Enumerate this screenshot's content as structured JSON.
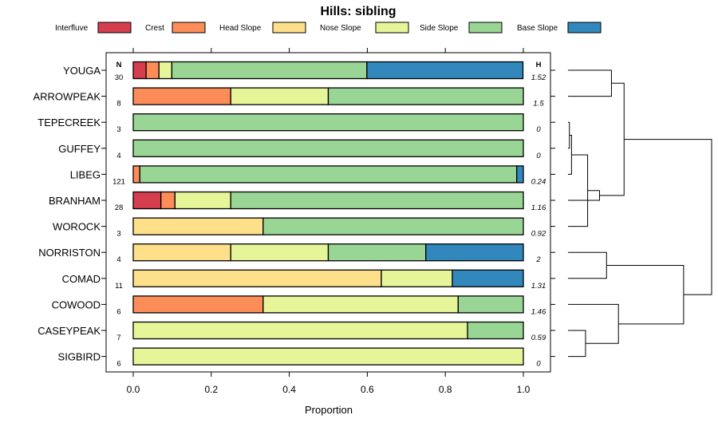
{
  "chart_data": {
    "type": "bar",
    "orientation": "horizontal",
    "stacked": true,
    "title": "Hills: sibling",
    "xlabel": "Proportion",
    "xlim": [
      0,
      1
    ],
    "xticks": [
      "0.0",
      "0.2",
      "0.4",
      "0.6",
      "0.8",
      "1.0"
    ],
    "n_header": "N",
    "h_header": "H",
    "legend": [
      {
        "name": "Interfluve",
        "color": "#d53e4f"
      },
      {
        "name": "Crest",
        "color": "#fc8d59"
      },
      {
        "name": "Head Slope",
        "color": "#fee08b"
      },
      {
        "name": "Nose Slope",
        "color": "#e6f598"
      },
      {
        "name": "Side Slope",
        "color": "#99d594"
      },
      {
        "name": "Base Slope",
        "color": "#3288bd"
      }
    ],
    "categories": [
      "YOUGA",
      "ARROWPEAK",
      "TEPECREEK",
      "GUFFEY",
      "LIBEG",
      "BRANHAM",
      "WOROCK",
      "NORRISTON",
      "COMAD",
      "COWOOD",
      "CASEYPEAK",
      "SIGBIRD"
    ],
    "n": [
      "30",
      "8",
      "3",
      "4",
      "121",
      "28",
      "3",
      "4",
      "11",
      "6",
      "7",
      "6"
    ],
    "h": [
      "1.52",
      "1.5",
      "0",
      "0",
      "0.24",
      "1.16",
      "0.92",
      "2",
      "1.31",
      "1.46",
      "0.59",
      "0"
    ],
    "series": [
      {
        "name": "Interfluve",
        "values": [
          0.033,
          0,
          0,
          0,
          0,
          0.071,
          0,
          0,
          0,
          0,
          0,
          0
        ]
      },
      {
        "name": "Crest",
        "values": [
          0.033,
          0.25,
          0,
          0,
          0.017,
          0.036,
          0,
          0,
          0,
          0.333,
          0,
          0
        ]
      },
      {
        "name": "Head Slope",
        "values": [
          0,
          0,
          0,
          0,
          0,
          0,
          0.333,
          0.25,
          0.636,
          0,
          0,
          0
        ]
      },
      {
        "name": "Nose Slope",
        "values": [
          0.033,
          0.25,
          0,
          0,
          0,
          0.143,
          0,
          0.25,
          0.182,
          0.5,
          0.857,
          1
        ]
      },
      {
        "name": "Side Slope",
        "values": [
          0.5,
          0.5,
          1,
          1,
          0.966,
          0.75,
          0.667,
          0.25,
          0,
          0.167,
          0.143,
          0
        ]
      },
      {
        "name": "Base Slope",
        "values": [
          0.4,
          0,
          0,
          0,
          0.017,
          0,
          0,
          0.25,
          0.182,
          0,
          0,
          0
        ]
      }
    ],
    "dendrogram": {
      "nodes": [
        {
          "left": "GUFFEY",
          "right": "TEPECREEK",
          "height": 0.02
        },
        {
          "left": "LIBEG",
          "right": 0,
          "height": 0.05
        },
        {
          "left": "WOROCK",
          "right": 1,
          "height": 0.28
        },
        {
          "left": "BRANHAM",
          "right": 2,
          "height": 0.45
        },
        {
          "left": "YOUGA",
          "right": "ARROWPEAK",
          "height": 0.62
        },
        {
          "left": 4,
          "right": 3,
          "height": 0.8
        },
        {
          "left": "NORRISTON",
          "right": "COMAD",
          "height": 0.55
        },
        {
          "left": "CASEYPEAK",
          "right": "SIGBIRD",
          "height": 0.25
        },
        {
          "left": "COWOOD",
          "right": 7,
          "height": 0.72
        },
        {
          "left": 6,
          "right": 8,
          "height": 1.65
        },
        {
          "left": 5,
          "right": 9,
          "height": 2.05
        }
      ]
    }
  }
}
